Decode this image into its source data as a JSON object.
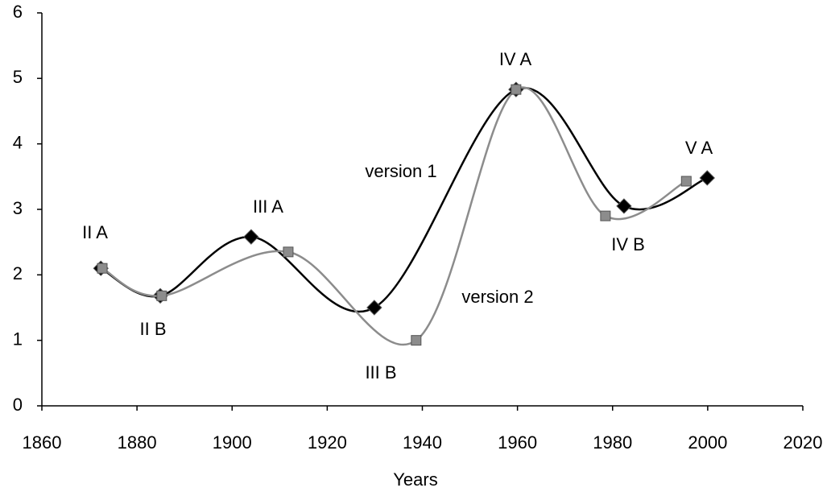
{
  "chart_data": {
    "type": "line",
    "xlabel": "Years",
    "series": [
      {
        "name": "version 1",
        "color": "#000000",
        "marker": "diamond",
        "x": [
          1872.4,
          1884.9,
          1904,
          1929.9,
          1959.7,
          1982.4,
          1999.9
        ],
        "values": [
          2.1,
          1.68,
          2.58,
          1.5,
          4.83,
          3.05,
          3.48
        ]
      },
      {
        "name": "version 2",
        "color": "#8c8c8c",
        "marker": "square",
        "x": [
          1872.7,
          1885.2,
          1911.8,
          1938.7,
          1959.7,
          1978.5,
          1995.5
        ],
        "values": [
          2.1,
          1.68,
          2.35,
          1.0,
          4.83,
          2.9,
          3.43
        ]
      }
    ],
    "annotations": [
      "II A",
      "II B",
      "III A",
      "III B",
      "IV A",
      "IV B",
      "V A"
    ],
    "xlim": [
      1860,
      2020
    ],
    "xticks": [
      1860,
      1880,
      1900,
      1920,
      1940,
      1960,
      1980,
      2000,
      2020
    ],
    "ylim": [
      0,
      6
    ],
    "yticks": [
      0,
      1,
      2,
      3,
      4,
      5,
      6
    ],
    "grid": false
  }
}
